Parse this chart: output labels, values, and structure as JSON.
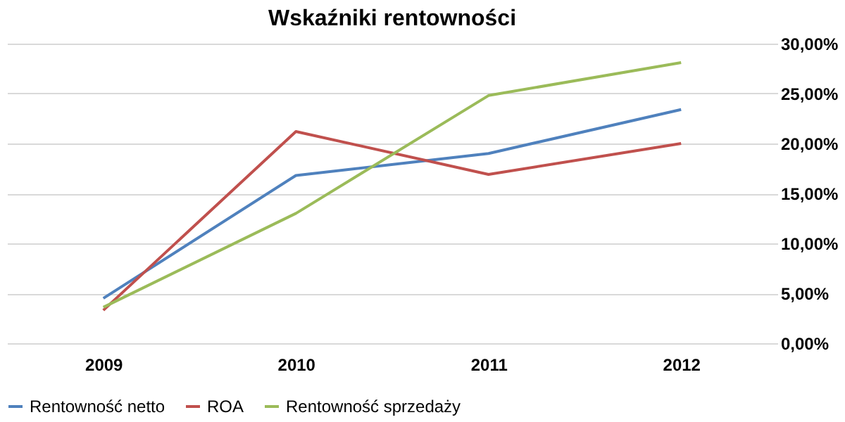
{
  "chart_data": {
    "type": "line",
    "title": "Wskaźniki rentowności",
    "categories": [
      "2009",
      "2010",
      "2011",
      "2012"
    ],
    "series": [
      {
        "name": "Rentowność netto",
        "color": "#4f81bd",
        "values": [
          4.5,
          16.8,
          19.0,
          23.4
        ]
      },
      {
        "name": "ROA",
        "color": "#c0504d",
        "values": [
          3.3,
          21.2,
          16.9,
          20.0
        ]
      },
      {
        "name": "Rentowność sprzedaży",
        "color": "#9bbb59",
        "values": [
          3.6,
          13.0,
          24.8,
          28.1
        ]
      }
    ],
    "ylim": [
      0,
      30
    ],
    "yticks": [
      {
        "value": 0,
        "label": "0,00%"
      },
      {
        "value": 5,
        "label": "5,00%"
      },
      {
        "value": 10,
        "label": "10,00%"
      },
      {
        "value": 15,
        "label": "15,00%"
      },
      {
        "value": 20,
        "label": "20,00%"
      },
      {
        "value": 25,
        "label": "25,00%"
      },
      {
        "value": 30,
        "label": "30,00%"
      }
    ],
    "grid": "y",
    "legend": "bottom",
    "marker": "none",
    "line_style": "solid"
  }
}
